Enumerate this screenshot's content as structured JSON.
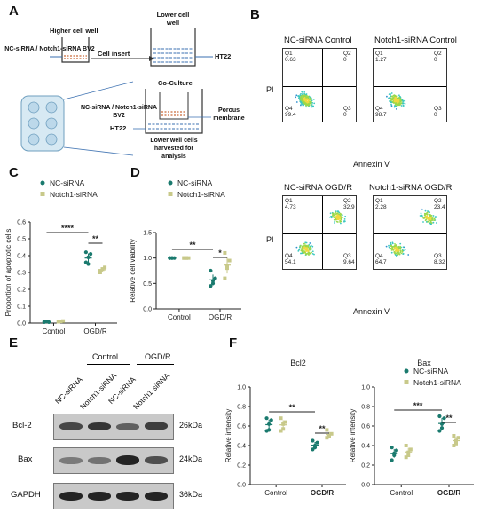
{
  "panels": {
    "A": "A",
    "B": "B",
    "C": "C",
    "D": "D",
    "E": "E",
    "F": "F"
  },
  "panelA": {
    "top_left_well": "Higher cell well",
    "top_right_well": "Lower cell well",
    "insert_label": "Cell insert",
    "left_cells": "NC-siRNA / Notch1-siRNA BV2",
    "right_cells": "HT22",
    "coculture_title": "Co-Culture",
    "coculture_cells": "NC-siRNA / Notch1-siRNA BV2",
    "coculture_ht22": "HT22",
    "membrane": "Porous membrane",
    "harvest": "Lower well cells harvested for analysis"
  },
  "panelB": {
    "axis_x": "Annexin V",
    "axis_y": "PI",
    "plots": [
      {
        "title": "NC-siRNA Control",
        "Q1": "0.63",
        "Q2": "0",
        "Q3": "0",
        "Q4": "99.4"
      },
      {
        "title": "Notch1-siRNA Control",
        "Q1": "1.27",
        "Q2": "0",
        "Q3": "0",
        "Q4": "98.7"
      },
      {
        "title": "NC-siRNA OGD/R",
        "Q1": "4.73",
        "Q2": "32.9",
        "Q3": "9.64",
        "Q4": "54.1"
      },
      {
        "title": "Notch1-siRNA OGD/R",
        "Q1": "2.28",
        "Q2": "23.4",
        "Q3": "8.32",
        "Q4": "64.7"
      }
    ],
    "quadrant_names": {
      "q1": "Q1",
      "q2": "Q2",
      "q3": "Q3",
      "q4": "Q4"
    },
    "tick": "10"
  },
  "legend": {
    "nc": "NC-siRNA",
    "notch": "Notch1-siRNA"
  },
  "colors": {
    "nc": "#1a7a6e",
    "notch": "#c8c98a"
  },
  "chart_data": [
    {
      "id": "C",
      "type": "scatter",
      "ylabel": "Proportion of apoptotic cells",
      "categories": [
        "Control",
        "OGD/R"
      ],
      "ylim": [
        0,
        0.6
      ],
      "yticks": [
        "0.0",
        "0.1",
        "0.2",
        "0.3",
        "0.4",
        "0.5",
        "0.6"
      ],
      "series": [
        {
          "name": "NC-siRNA",
          "values": [
            [
              0.006,
              0.01,
              0.006,
              0.009
            ],
            [
              0.36,
              0.39,
              0.41,
              0.42,
              0.35
            ]
          ]
        },
        {
          "name": "Notch1-siRNA",
          "values": [
            [
              0.008,
              0.01,
              0.012,
              0.008
            ],
            [
              0.3,
              0.32,
              0.33,
              0.31,
              0.32
            ]
          ]
        }
      ],
      "sig": [
        "****",
        "**"
      ]
    },
    {
      "id": "D",
      "type": "scatter",
      "ylabel": "Relative cell viability",
      "categories": [
        "Control",
        "OGD/R"
      ],
      "ylim": [
        0,
        1.5
      ],
      "yticks": [
        "0.0",
        "0.5",
        "1.0",
        "1.5"
      ],
      "series": [
        {
          "name": "NC-siRNA",
          "values": [
            [
              1.0,
              1.0,
              1.0,
              1.0,
              1.0
            ],
            [
              0.45,
              0.55,
              0.6,
              0.75,
              0.5
            ]
          ]
        },
        {
          "name": "Notch1-siRNA",
          "values": [
            [
              1.0,
              1.0,
              1.0,
              1.0,
              1.0
            ],
            [
              0.6,
              0.8,
              0.95,
              1.1,
              0.85
            ]
          ]
        }
      ],
      "sig": [
        "**",
        "*"
      ]
    },
    {
      "id": "F1",
      "type": "scatter",
      "title": "Bcl2",
      "ylabel": "Relative intensity",
      "categories": [
        "Control",
        "OGD/R"
      ],
      "ylim": [
        0,
        1.0
      ],
      "yticks": [
        "0.0",
        "0.2",
        "0.4",
        "0.6",
        "0.8",
        "1.0"
      ],
      "series": [
        {
          "name": "NC-siRNA",
          "values": [
            [
              0.55,
              0.62,
              0.66,
              0.68,
              0.56
            ],
            [
              0.36,
              0.4,
              0.43,
              0.45,
              0.38
            ]
          ]
        },
        {
          "name": "Notch1-siRNA",
          "values": [
            [
              0.55,
              0.62,
              0.64,
              0.68,
              0.57
            ],
            [
              0.48,
              0.5,
              0.52,
              0.56,
              0.5
            ]
          ]
        }
      ],
      "sig": [
        "**",
        "**"
      ]
    },
    {
      "id": "F2",
      "type": "scatter",
      "title": "Bax",
      "ylabel": "Relative intensity",
      "categories": [
        "Control",
        "OGD/R"
      ],
      "ylim": [
        0,
        1.0
      ],
      "yticks": [
        "0.0",
        "0.2",
        "0.4",
        "0.6",
        "0.8",
        "1.0"
      ],
      "series": [
        {
          "name": "NC-siRNA",
          "values": [
            [
              0.25,
              0.3,
              0.35,
              0.38,
              0.32
            ],
            [
              0.55,
              0.62,
              0.68,
              0.7,
              0.58
            ]
          ]
        },
        {
          "name": "Notch1-siRNA",
          "values": [
            [
              0.28,
              0.33,
              0.36,
              0.4,
              0.3
            ],
            [
              0.4,
              0.45,
              0.48,
              0.5,
              0.42
            ]
          ]
        }
      ],
      "sig": [
        "***",
        "**"
      ]
    }
  ],
  "panelE": {
    "group_control": "Control",
    "group_ogdr": "OGD/R",
    "lanes": [
      "NC-siRNA",
      "Notch1-siRNA",
      "NC-siRNA",
      "Notch1-siRNA"
    ],
    "rows": [
      {
        "label": "Bcl-2",
        "kda": "26kDa"
      },
      {
        "label": "Bax",
        "kda": "24kDa"
      },
      {
        "label": "GAPDH",
        "kda": "36kDa"
      }
    ]
  }
}
